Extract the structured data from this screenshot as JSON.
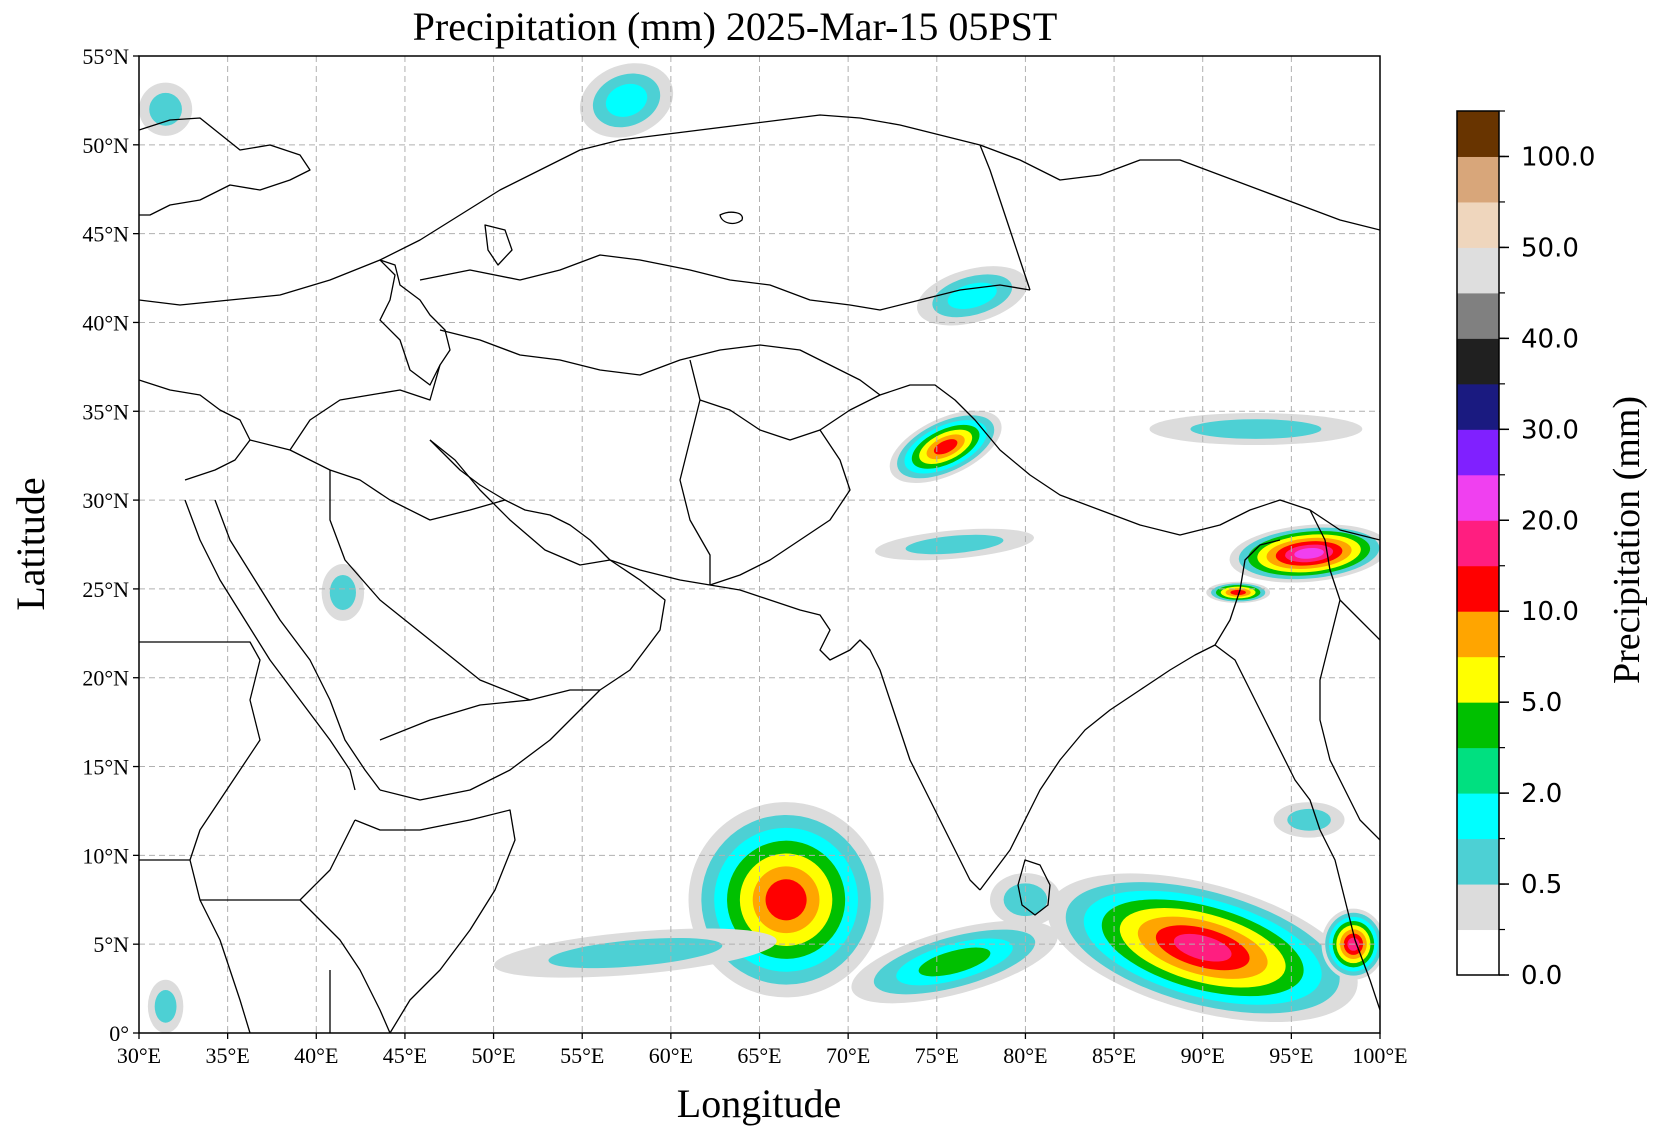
{
  "map": {
    "title": "Precipitation (mm)  2025-Mar-15 05PST",
    "xlabel": "Longitude",
    "ylabel": "Latitude",
    "colorbar_label": "Precipitation (mm)",
    "lon_range": [
      30,
      100
    ],
    "lat_range": [
      0,
      55
    ],
    "lon_ticks": [
      "30°E",
      "35°E",
      "40°E",
      "45°E",
      "50°E",
      "55°E",
      "60°E",
      "65°E",
      "70°E",
      "75°E",
      "80°E",
      "85°E",
      "90°E",
      "95°E",
      "100°E"
    ],
    "lat_ticks": [
      "0°",
      "5°N",
      "10°N",
      "15°N",
      "20°N",
      "25°N",
      "30°N",
      "35°N",
      "40°N",
      "45°N",
      "50°N",
      "55°N"
    ],
    "grid": true,
    "colorbar": {
      "colors": [
        "#ffffff",
        "#dcdcdc",
        "#4dd0d4",
        "#00ffff",
        "#00e080",
        "#00c000",
        "#ffff00",
        "#ffa500",
        "#ff0000",
        "#ff1e80",
        "#f040f0",
        "#8020ff",
        "#1a1a80",
        "#202020",
        "#808080",
        "#dedede",
        "#efd6bd",
        "#d8a67a",
        "#683400"
      ],
      "tick_labels": [
        "0.0",
        "0.5",
        "2.0",
        "5.0",
        "10.0",
        "20.0",
        "30.0",
        "40.0",
        "50.0",
        "100.0"
      ]
    },
    "precip_regions": [
      {
        "name": "arabian-sea-system",
        "lon": 66.5,
        "lat": 7.5,
        "rx": 5.5,
        "ry": 5.5,
        "levels": [
          1,
          2,
          3,
          5,
          6,
          7,
          8
        ],
        "rot": -35
      },
      {
        "name": "bay-of-bengal-system",
        "lon": 90,
        "lat": 4.8,
        "rx": 9,
        "ry": 3.6,
        "levels": [
          1,
          2,
          3,
          5,
          6,
          7,
          8,
          9
        ],
        "rot": 15
      },
      {
        "name": "northeast-india",
        "lon": 96,
        "lat": 27,
        "rx": 4.5,
        "ry": 1.6,
        "levels": [
          1,
          2,
          5,
          6,
          7,
          8,
          9,
          10
        ],
        "rot": -5
      },
      {
        "name": "northwest-himalaya",
        "lon": 75.5,
        "lat": 33,
        "rx": 3.4,
        "ry": 1.6,
        "levels": [
          1,
          2,
          3,
          5,
          6,
          7,
          8
        ],
        "rot": -25
      },
      {
        "name": "bangladesh-cell",
        "lon": 92,
        "lat": 24.8,
        "rx": 1.8,
        "ry": 0.6,
        "levels": [
          1,
          2,
          5,
          6,
          7,
          8
        ],
        "rot": 0
      },
      {
        "name": "pakistan-band",
        "lon": 76,
        "lat": 27.5,
        "rx": 4.5,
        "ry": 0.8,
        "levels": [
          1,
          2
        ],
        "rot": -5
      },
      {
        "name": "kazakh-north",
        "lon": 57.5,
        "lat": 52.5,
        "rx": 2.7,
        "ry": 2,
        "levels": [
          1,
          2,
          3
        ],
        "rot": -20
      },
      {
        "name": "tien-shan",
        "lon": 77,
        "lat": 41.5,
        "rx": 3.2,
        "ry": 1.5,
        "levels": [
          1,
          2,
          3
        ],
        "rot": -15
      },
      {
        "name": "tibet-band",
        "lon": 93,
        "lat": 34,
        "rx": 6,
        "ry": 0.9,
        "levels": [
          1,
          2
        ],
        "rot": 0
      },
      {
        "name": "arabia-patch",
        "lon": 41.5,
        "lat": 24.8,
        "rx": 1.2,
        "ry": 1.6,
        "levels": [
          1,
          2
        ],
        "rot": 0
      },
      {
        "name": "east-africa",
        "lon": 31.5,
        "lat": 1.5,
        "rx": 1,
        "ry": 1.5,
        "levels": [
          1,
          2
        ],
        "rot": 0
      },
      {
        "name": "black-sea-north",
        "lon": 31.5,
        "lat": 52,
        "rx": 1.5,
        "ry": 1.5,
        "levels": [
          1,
          2
        ],
        "rot": 0
      },
      {
        "name": "equatorial-band",
        "lon": 58,
        "lat": 4.5,
        "rx": 8,
        "ry": 1.2,
        "levels": [
          1,
          2
        ],
        "rot": -5
      },
      {
        "name": "maldives-band",
        "lon": 76,
        "lat": 4,
        "rx": 6,
        "ry": 1.8,
        "levels": [
          1,
          2,
          3,
          5
        ],
        "rot": -15
      },
      {
        "name": "srilanka-south",
        "lon": 80,
        "lat": 7.5,
        "rx": 2,
        "ry": 1.5,
        "levels": [
          1,
          2
        ],
        "rot": 0
      },
      {
        "name": "malay-west",
        "lon": 98.5,
        "lat": 5,
        "rx": 1.8,
        "ry": 2,
        "levels": [
          1,
          2,
          3,
          5,
          6,
          7,
          8,
          9
        ],
        "rot": 0
      },
      {
        "name": "andaman",
        "lon": 96,
        "lat": 12,
        "rx": 2,
        "ry": 1,
        "levels": [
          1,
          2
        ],
        "rot": 0
      }
    ]
  }
}
